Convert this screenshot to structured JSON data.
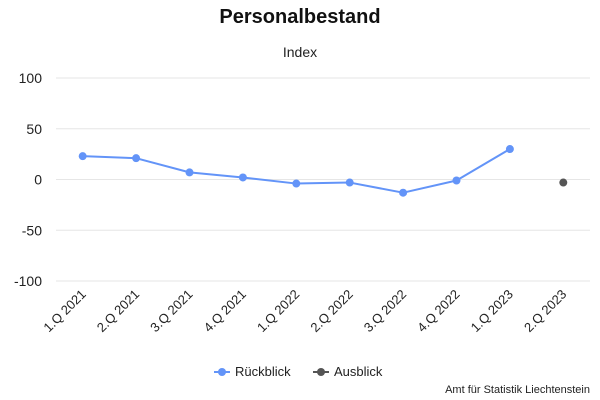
{
  "chart_data": {
    "type": "line",
    "title": "Personalbestand",
    "subtitle": "Index",
    "categories": [
      "1.Q 2021",
      "2.Q 2021",
      "3.Q 2021",
      "4.Q 2021",
      "1.Q 2022",
      "2.Q 2022",
      "3.Q 2022",
      "4.Q 2022",
      "1.Q 2023",
      "2.Q 2023"
    ],
    "ylim": [
      -100,
      100
    ],
    "yticks": [
      "100",
      "50",
      "0",
      "-50",
      "-100"
    ],
    "grid": true,
    "legend_position": "bottom",
    "series": [
      {
        "name": "Rückblick",
        "color": "#6394f8",
        "values": [
          23,
          21,
          7,
          2,
          -4,
          -3,
          -13,
          -1,
          30,
          null
        ]
      },
      {
        "name": "Ausblick",
        "color": "#555555",
        "values": [
          null,
          null,
          null,
          null,
          null,
          null,
          null,
          null,
          null,
          -3
        ]
      }
    ]
  },
  "credits": "Amt für Statistik Liechtenstein"
}
